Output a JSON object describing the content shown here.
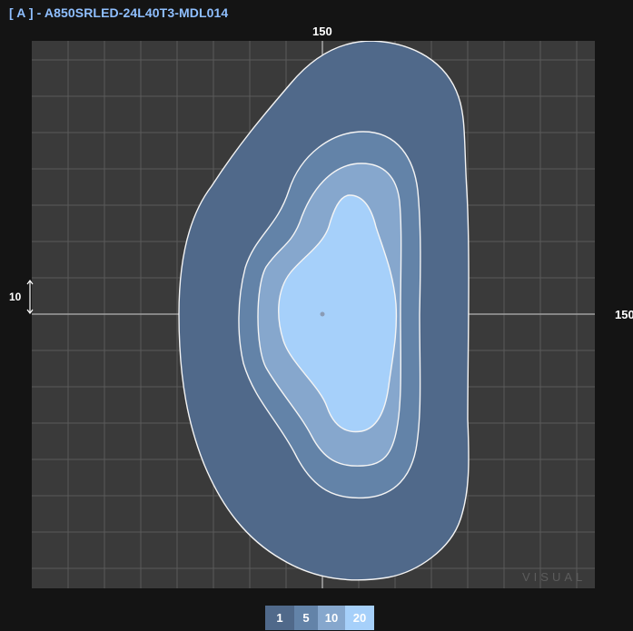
{
  "header": {
    "title": "[ A ] - A850SRLED-24L40T3-MDL014"
  },
  "plot": {
    "top_label": "150",
    "right_label": "150",
    "left_label": "10",
    "watermark": "VISUAL",
    "contour_levels": [
      1,
      5,
      10,
      20
    ],
    "colors": {
      "background": "#3a3a3a",
      "grid": "#5a5a5a",
      "axis": "#9a9a9a",
      "level_1": "#50698a",
      "level_5": "#6383a8",
      "level_10": "#86a7cd",
      "level_20": "#a6d0fa",
      "contour_stroke": "#f4f4f4",
      "title": "#8fbfff"
    }
  },
  "legend": {
    "items": [
      {
        "label": "1",
        "color": "#50698a"
      },
      {
        "label": "5",
        "color": "#6383a8"
      },
      {
        "label": "10",
        "color": "#86a7cd"
      },
      {
        "label": "20",
        "color": "#a6d0fa"
      }
    ]
  }
}
